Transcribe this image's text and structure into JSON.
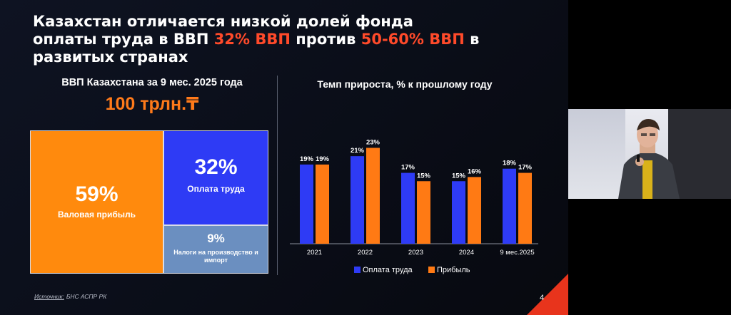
{
  "title": {
    "line1": "Казахстан отличается низкой долей фонда",
    "line2_a": "оплаты труда в ВВП ",
    "line2_hl1": "32% ВВП",
    "line2_b": " против ",
    "line2_hl2": "50-60% ВВП",
    "line2_c": " в",
    "line3": "развитых странах"
  },
  "left": {
    "heading": "ВВП Казахстана за 9 мес. 2025 года",
    "total": "100 трлн.₸",
    "tiles": [
      {
        "pct": "59%",
        "label": "Валовая прибыль"
      },
      {
        "pct": "32%",
        "label": "Оплата труда"
      },
      {
        "pct": "9%",
        "label": "Налоги на производство и импорт"
      }
    ]
  },
  "chart_data": {
    "type": "bar",
    "title": "Темп прироста, % к прошлому году",
    "categories": [
      "2021",
      "2022",
      "2023",
      "2024",
      "9 мес.2025"
    ],
    "series": [
      {
        "name": "Оплата труда",
        "values": [
          19,
          21,
          17,
          15,
          18
        ],
        "labels": [
          "19%",
          "21%",
          "17%",
          "15%",
          "18%"
        ],
        "color": "#2e3bf5"
      },
      {
        "name": "Прибыль",
        "values": [
          19,
          23,
          15,
          16,
          17
        ],
        "labels": [
          "19%",
          "23%",
          "15%",
          "16%",
          "17%"
        ],
        "color": "#ff7a14"
      }
    ],
    "ylim": [
      0,
      25
    ],
    "xlabel": "",
    "ylabel": "",
    "legend": "bottom"
  },
  "footer": {
    "source_label": "Источник:",
    "source_value": "БНС АСПР РК",
    "page_number": "4"
  }
}
